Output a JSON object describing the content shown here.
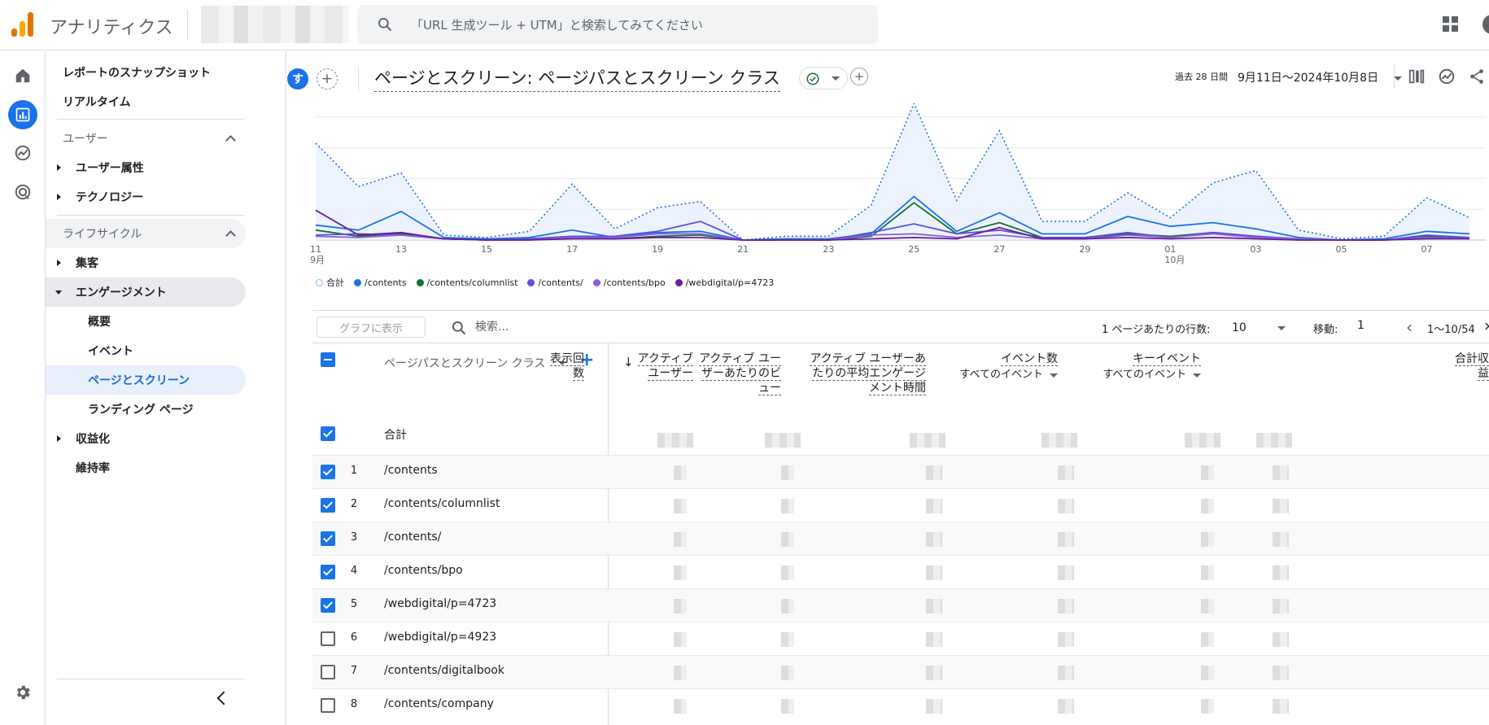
{
  "app": {
    "title": "アナリティクス"
  },
  "search": {
    "placeholder": "「URL 生成ツール + UTM」と検索してみてください"
  },
  "colors": {
    "brand_blue": "#1a73e8",
    "series": [
      "#4285f4",
      "#1a73e8",
      "#137333",
      "#5b4fe5",
      "#8e5fd6",
      "#6a1b9a"
    ]
  },
  "nav": {
    "top_items": [
      "レポートのスナップショット",
      "リアルタイム"
    ],
    "section_user": "ユーザー",
    "user_items": [
      "ユーザー属性",
      "テクノロジー"
    ],
    "section_lifecycle": "ライフサイクル",
    "lifecycle_items": [
      "集客",
      "エンゲージメント"
    ],
    "engagement_children": [
      "概要",
      "イベント",
      "ページとスクリーン",
      "ランディング ページ"
    ],
    "after_items": [
      "収益化",
      "維持率"
    ]
  },
  "header": {
    "compare_chip": "す",
    "title": "ページとスクリーン: ページパスとスクリーン クラス",
    "date_compare_label": "過去 28 日間",
    "date_range": "9月11日～2024年10月8日"
  },
  "chart_data": {
    "type": "line",
    "x": [
      "11",
      "12",
      "13",
      "14",
      "15",
      "16",
      "17",
      "18",
      "19",
      "20",
      "21",
      "22",
      "23",
      "24",
      "25",
      "26",
      "27",
      "28",
      "29",
      "30",
      "01",
      "02",
      "03",
      "04",
      "05",
      "06",
      "07",
      "08"
    ],
    "x_tick_labels": [
      "11",
      "13",
      "15",
      "17",
      "19",
      "21",
      "23",
      "25",
      "27",
      "29",
      "01",
      "03",
      "05",
      "07"
    ],
    "x_month_labels": {
      "11": "9月",
      "01": "10月"
    },
    "series": [
      {
        "name": "合計",
        "style": "dotted-area",
        "values": [
          78,
          43,
          54,
          4,
          2,
          7,
          45,
          9,
          26,
          31,
          0,
          3,
          3,
          28,
          110,
          32,
          88,
          15,
          15,
          38,
          18,
          46,
          56,
          8,
          1,
          3,
          34,
          18
        ]
      },
      {
        "name": "/contents",
        "values": [
          12,
          8,
          23,
          2,
          1,
          2,
          8,
          2,
          6,
          7,
          0,
          1,
          1,
          5,
          35,
          7,
          22,
          5,
          5,
          19,
          11,
          14,
          9,
          2,
          0,
          1,
          7,
          5
        ]
      },
      {
        "name": "/contents/columnlist",
        "values": [
          8,
          3,
          5,
          1,
          0,
          1,
          3,
          1,
          3,
          4,
          0,
          0,
          0,
          3,
          30,
          5,
          14,
          2,
          2,
          5,
          3,
          6,
          3,
          1,
          0,
          0,
          3,
          2
        ]
      },
      {
        "name": "/contents/",
        "values": [
          4,
          5,
          4,
          1,
          0,
          1,
          3,
          3,
          7,
          15,
          0,
          0,
          0,
          6,
          13,
          5,
          8,
          2,
          2,
          6,
          2,
          6,
          3,
          1,
          0,
          0,
          4,
          2
        ]
      },
      {
        "name": "/contents/bpo",
        "values": [
          3,
          2,
          4,
          1,
          0,
          0,
          2,
          2,
          5,
          5,
          0,
          0,
          0,
          4,
          5,
          2,
          4,
          1,
          1,
          4,
          2,
          5,
          2,
          1,
          0,
          0,
          2,
          1
        ]
      },
      {
        "name": "/webdigital/p=4723",
        "values": [
          24,
          4,
          6,
          1,
          0,
          0,
          1,
          1,
          2,
          2,
          0,
          0,
          0,
          1,
          2,
          1,
          10,
          1,
          1,
          2,
          1,
          2,
          1,
          0,
          0,
          0,
          1,
          1
        ]
      }
    ],
    "ylim": [
      0,
      110
    ],
    "grid": true,
    "legend_position": "bottom-left"
  },
  "table": {
    "plot_rows_button": "グラフに表示",
    "search_placeholder": "検索...",
    "rows_per_page_label": "1 ページあたりの行数:",
    "rows_per_page": "10",
    "goto_label": "移動:",
    "goto_value": "1",
    "page_range": "1～10/54",
    "dimension_header": "ページパスとスクリーン クラス",
    "total_label": "合計",
    "metric_headers": [
      {
        "lines": [
          "表示回",
          "数"
        ],
        "sub": ""
      },
      {
        "lines": [
          "アクティブ",
          "ユーザー"
        ],
        "sub": ""
      },
      {
        "lines": [
          "アクティブ ユー",
          "ザーあたりのビ",
          "ュー"
        ],
        "sub": ""
      },
      {
        "lines": [
          "アクティブ ユーザーあ",
          "たりの平均エンゲージ",
          "メント時間"
        ],
        "sub": ""
      },
      {
        "lines": [
          "イベント数"
        ],
        "sub": "すべてのイベント"
      },
      {
        "lines": [
          "キーイベント"
        ],
        "sub": "すべてのイベント"
      },
      {
        "lines": [
          "合計収",
          "益"
        ],
        "sub": ""
      }
    ],
    "rows": [
      {
        "index": "1",
        "path": "/contents",
        "checked": true
      },
      {
        "index": "2",
        "path": "/contents/columnlist",
        "checked": true
      },
      {
        "index": "3",
        "path": "/contents/",
        "checked": true
      },
      {
        "index": "4",
        "path": "/contents/bpo",
        "checked": true
      },
      {
        "index": "5",
        "path": "/webdigital/p=4723",
        "checked": true
      },
      {
        "index": "6",
        "path": "/webdigital/p=4923",
        "checked": false
      },
      {
        "index": "7",
        "path": "/contents/digitalbook",
        "checked": false
      },
      {
        "index": "8",
        "path": "/contents/company",
        "checked": false
      }
    ]
  }
}
